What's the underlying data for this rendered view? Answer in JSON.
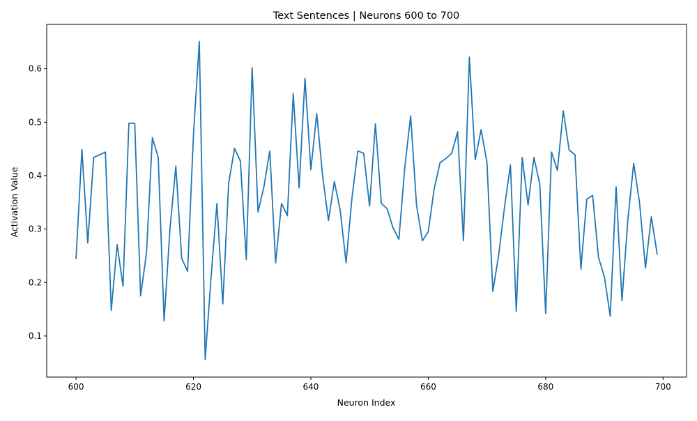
{
  "chart_data": {
    "type": "line",
    "title": "Text Sentences | Neurons 600 to 700",
    "xlabel": "Neuron Index",
    "ylabel": "Activation Value",
    "xlim": [
      595,
      704
    ],
    "ylim": [
      0.023,
      0.683
    ],
    "xticks": [
      600,
      620,
      640,
      660,
      680,
      700
    ],
    "yticks": [
      0.1,
      0.2,
      0.3,
      0.4,
      0.5,
      0.6
    ],
    "grid": false,
    "legend": "none",
    "line_color": "#1f77b4",
    "series": [
      {
        "x": [
          600,
          601,
          602,
          603,
          604,
          605,
          606,
          607,
          608,
          609,
          610,
          611,
          612,
          613,
          614,
          615,
          616,
          617,
          618,
          619,
          620,
          621,
          622,
          623,
          624,
          625,
          626,
          627,
          628,
          629,
          630,
          631,
          632,
          633,
          634,
          635,
          636,
          637,
          638,
          639,
          640,
          641,
          642,
          643,
          644,
          645,
          646,
          647,
          648,
          649,
          650,
          651,
          652,
          653,
          654,
          655,
          656,
          657,
          658,
          659,
          660,
          661,
          662,
          663,
          664,
          665,
          666,
          667,
          668,
          669,
          670,
          671,
          672,
          673,
          674,
          675,
          676,
          677,
          678,
          679,
          680,
          681,
          682,
          683,
          684,
          685,
          686,
          687,
          688,
          689,
          690,
          691,
          692,
          693,
          694,
          695,
          696,
          697,
          698,
          699
        ],
        "values": [
          0.245,
          0.449,
          0.274,
          0.434,
          0.439,
          0.444,
          0.148,
          0.271,
          0.193,
          0.498,
          0.498,
          0.175,
          0.255,
          0.471,
          0.434,
          0.128,
          0.3,
          0.418,
          0.245,
          0.221,
          0.476,
          0.651,
          0.056,
          0.21,
          0.348,
          0.16,
          0.386,
          0.451,
          0.427,
          0.243,
          0.602,
          0.332,
          0.379,
          0.446,
          0.237,
          0.348,
          0.325,
          0.553,
          0.377,
          0.582,
          0.411,
          0.516,
          0.4,
          0.316,
          0.389,
          0.335,
          0.237,
          0.358,
          0.446,
          0.442,
          0.343,
          0.497,
          0.348,
          0.338,
          0.302,
          0.281,
          0.415,
          0.512,
          0.345,
          0.278,
          0.295,
          0.375,
          0.424,
          0.432,
          0.442,
          0.482,
          0.278,
          0.622,
          0.43,
          0.486,
          0.425,
          0.183,
          0.252,
          0.342,
          0.42,
          0.146,
          0.434,
          0.345,
          0.434,
          0.384,
          0.142,
          0.444,
          0.41,
          0.521,
          0.448,
          0.439,
          0.225,
          0.356,
          0.363,
          0.247,
          0.211,
          0.137,
          0.379,
          0.166,
          0.317,
          0.423,
          0.349,
          0.227,
          0.323,
          0.253
        ]
      }
    ]
  }
}
